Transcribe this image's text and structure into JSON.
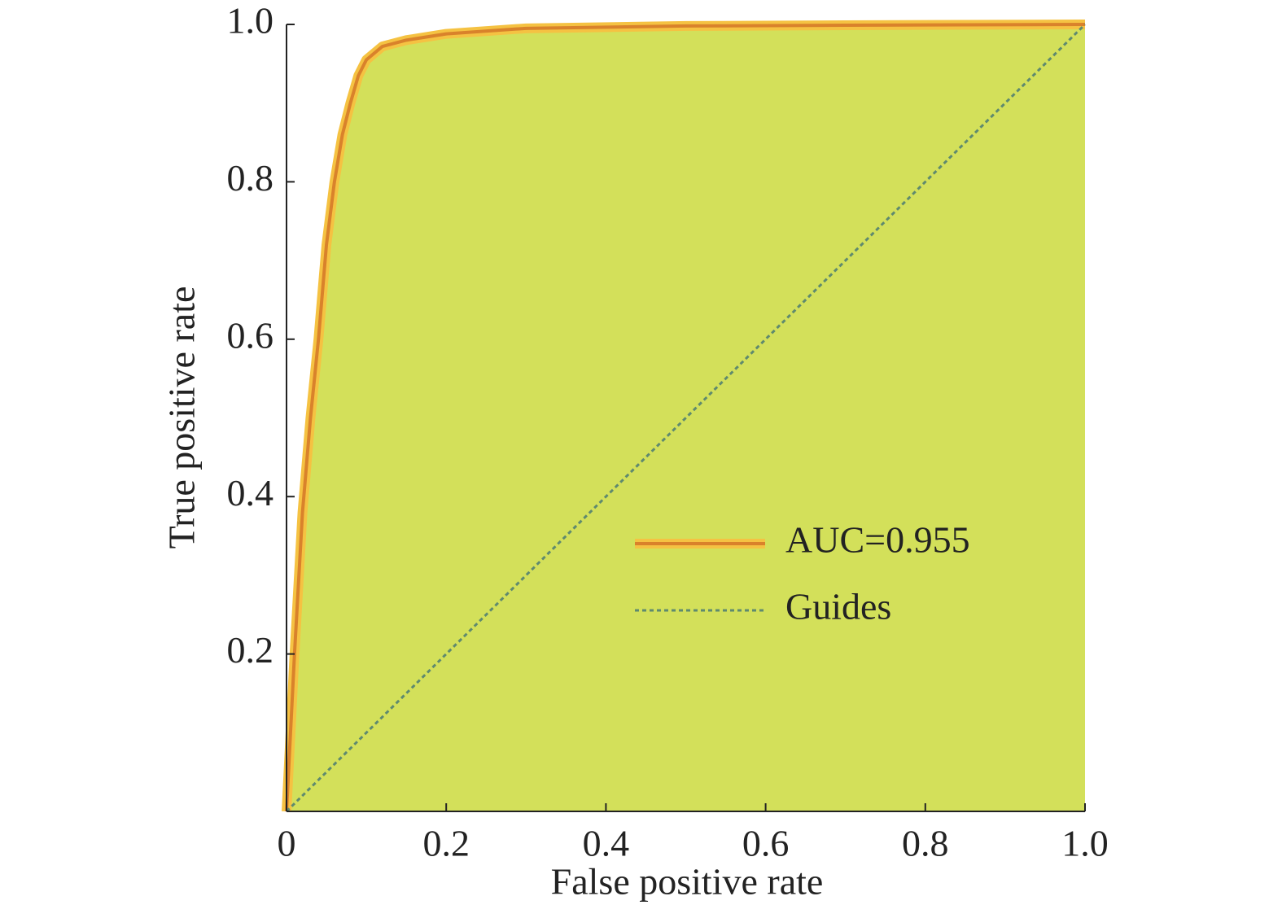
{
  "chart_data": {
    "type": "line",
    "xlabel": "False positive rate",
    "ylabel": "True positive rate",
    "series": [
      {
        "name": "AUC=0.955",
        "color": "#d9822b",
        "halo": "#f5c242",
        "fill": "#d3e05a",
        "style": "solid",
        "x": [
          0,
          0.005,
          0.01,
          0.02,
          0.03,
          0.04,
          0.05,
          0.06,
          0.07,
          0.08,
          0.09,
          0.1,
          0.12,
          0.15,
          0.2,
          0.3,
          0.5,
          0.7,
          1.0
        ],
        "values": [
          0,
          0.1,
          0.2,
          0.38,
          0.5,
          0.6,
          0.72,
          0.8,
          0.86,
          0.9,
          0.935,
          0.955,
          0.972,
          0.98,
          0.988,
          0.995,
          0.998,
          0.999,
          1.0
        ]
      },
      {
        "name": "Guides",
        "color": "#5f8a6e",
        "style": "dotted",
        "x": [
          0,
          1.0
        ],
        "values": [
          0,
          1.0
        ]
      }
    ],
    "xlim": [
      0,
      1.0
    ],
    "ylim": [
      0,
      1.0
    ],
    "xticks": [
      0,
      0.2,
      0.4,
      0.6,
      0.8,
      {
        "value": 1.0,
        "label": "1.0"
      }
    ],
    "yticks": [
      0.2,
      0.4,
      0.6,
      0.8,
      {
        "value": 1.0,
        "label": "1.0"
      }
    ],
    "legend": "lower right",
    "grid": false
  }
}
